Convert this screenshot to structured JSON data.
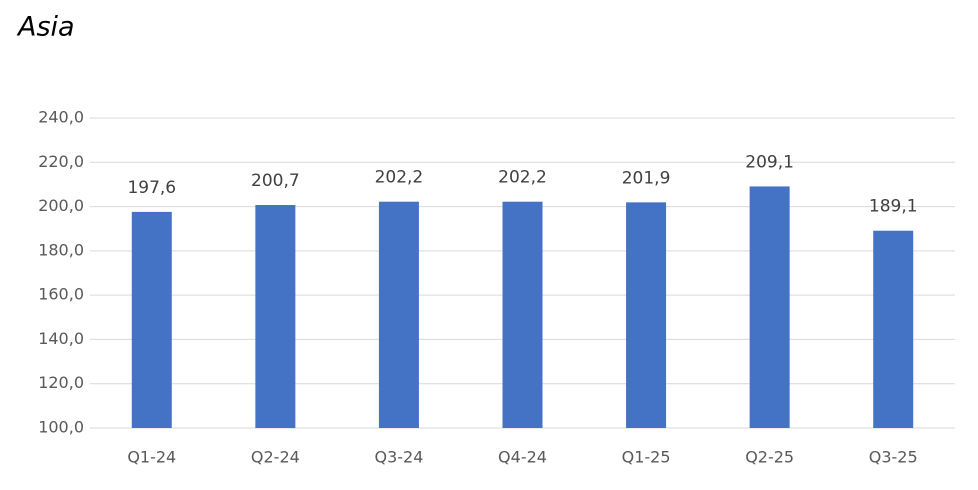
{
  "chart_data": {
    "type": "bar",
    "title": "Asia",
    "categories": [
      "Q1-24",
      "Q2-24",
      "Q3-24",
      "Q4-24",
      "Q1-25",
      "Q2-25",
      "Q3-25"
    ],
    "values": [
      197.6,
      200.7,
      202.2,
      202.2,
      201.9,
      209.1,
      189.1
    ],
    "value_labels": [
      "197,6",
      "200,7",
      "202,2",
      "202,2",
      "201,9",
      "209,1",
      "189,1"
    ],
    "color": "#4472c4",
    "ylim": [
      100,
      240
    ],
    "yticks": [
      {
        "value": 100,
        "label": "100,0"
      },
      {
        "value": 120,
        "label": "120,0"
      },
      {
        "value": 140,
        "label": "140,0"
      },
      {
        "value": 160,
        "label": "160,0"
      },
      {
        "value": 180,
        "label": "180,0"
      },
      {
        "value": 200,
        "label": "200,0"
      },
      {
        "value": 220,
        "label": "220,0"
      },
      {
        "value": 240,
        "label": "240,0"
      }
    ],
    "grid": true
  }
}
